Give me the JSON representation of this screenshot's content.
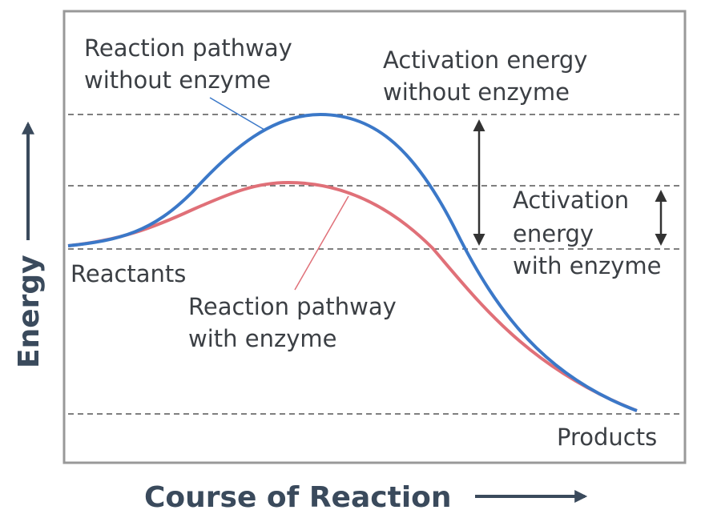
{
  "diagram": {
    "axis_y": "Energy",
    "axis_x": "Course of Reaction",
    "labels": {
      "pathway_without": [
        "Reaction pathway",
        "without enzyme"
      ],
      "activation_without": [
        "Activation energy",
        "without enzyme"
      ],
      "activation_with": [
        "Activation",
        "energy",
        "with enzyme"
      ],
      "reactants": "Reactants",
      "pathway_with": [
        "Reaction pathway",
        "with enzyme"
      ],
      "products": "Products"
    }
  }
}
